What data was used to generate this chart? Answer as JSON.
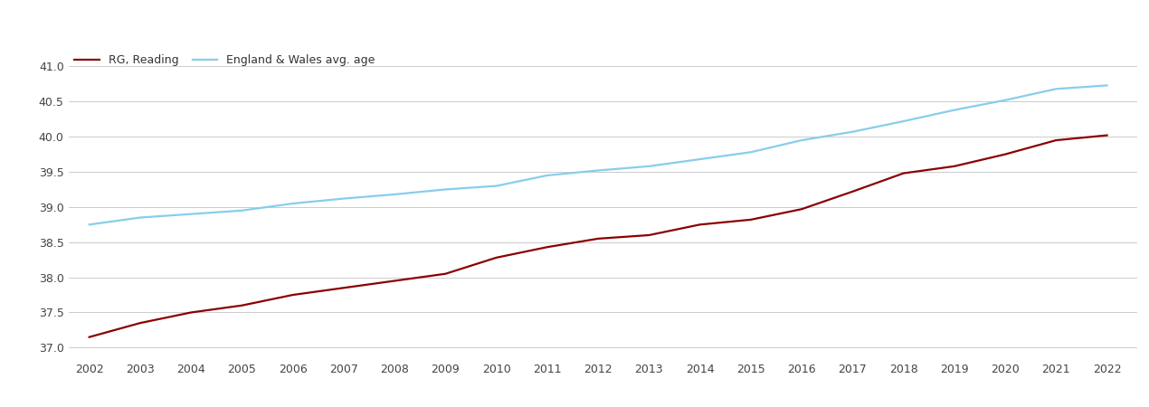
{
  "years": [
    2002,
    2003,
    2004,
    2005,
    2006,
    2007,
    2008,
    2009,
    2010,
    2011,
    2012,
    2013,
    2014,
    2015,
    2016,
    2017,
    2018,
    2019,
    2020,
    2021,
    2022
  ],
  "rg_reading": [
    37.15,
    37.35,
    37.5,
    37.6,
    37.75,
    37.85,
    37.95,
    38.05,
    38.28,
    38.43,
    38.55,
    38.6,
    38.75,
    38.82,
    38.97,
    39.22,
    39.48,
    39.58,
    39.75,
    39.95,
    40.02
  ],
  "ew_avg": [
    38.75,
    38.85,
    38.9,
    38.95,
    39.05,
    39.12,
    39.18,
    39.25,
    39.3,
    39.45,
    39.52,
    39.58,
    39.68,
    39.78,
    39.95,
    40.07,
    40.22,
    40.38,
    40.52,
    40.68,
    40.73
  ],
  "rg_color": "#8B0000",
  "ew_color": "#87CEEB",
  "bg_color": "#ffffff",
  "grid_color": "#cccccc",
  "ylim": [
    36.85,
    41.25
  ],
  "yticks": [
    37.0,
    37.5,
    38.0,
    38.5,
    39.0,
    39.5,
    40.0,
    40.5,
    41.0
  ],
  "legend_rg": "RG, Reading",
  "legend_ew": "England & Wales avg. age",
  "line_width": 1.6,
  "tick_fontsize": 9
}
